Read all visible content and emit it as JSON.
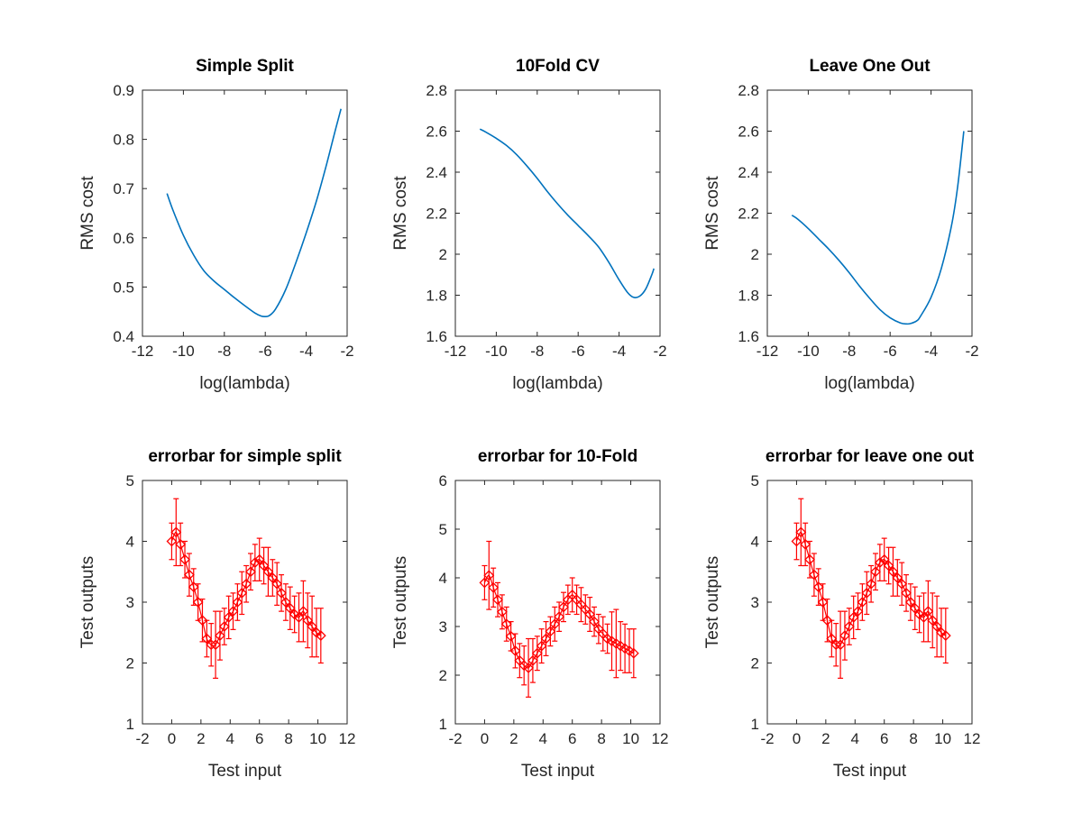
{
  "colors": {
    "curve": "#0072BD",
    "errorbar": "#FF0000",
    "axis": "#262626",
    "background": "#FFFFFF"
  },
  "chart_data": [
    {
      "type": "line",
      "title": "Simple Split",
      "xlabel": "log(lambda)",
      "ylabel": "RMS cost",
      "xlim": [
        -12,
        -2
      ],
      "ylim": [
        0.4,
        0.9
      ],
      "xticks": [
        -12,
        -10,
        -8,
        -6,
        -4,
        -2
      ],
      "yticks": [
        0.4,
        0.5,
        0.6,
        0.7,
        0.8,
        0.9
      ],
      "xtick_labels": [
        "-12",
        "-10",
        "-8",
        "-6",
        "-4",
        "-2"
      ],
      "ytick_labels": [
        "0.4",
        "0.5",
        "0.6",
        "0.7",
        "0.8",
        "0.9"
      ],
      "grid": false,
      "series": [
        {
          "x": [
            -10.8,
            -10.5,
            -10.0,
            -9.5,
            -9.0,
            -8.5,
            -8.0,
            -7.5,
            -7.0,
            -6.5,
            -6.2,
            -6.0,
            -5.8,
            -5.5,
            -5.0,
            -4.5,
            -4.0,
            -3.5,
            -3.0,
            -2.6,
            -2.3
          ],
          "y": [
            0.69,
            0.655,
            0.605,
            0.565,
            0.533,
            0.512,
            0.495,
            0.478,
            0.462,
            0.447,
            0.441,
            0.44,
            0.442,
            0.455,
            0.495,
            0.55,
            0.61,
            0.675,
            0.75,
            0.815,
            0.862
          ]
        }
      ]
    },
    {
      "type": "line",
      "title": "10Fold CV",
      "xlabel": "log(lambda)",
      "ylabel": "RMS cost",
      "xlim": [
        -12,
        -2
      ],
      "ylim": [
        1.6,
        2.8
      ],
      "xticks": [
        -12,
        -10,
        -8,
        -6,
        -4,
        -2
      ],
      "yticks": [
        1.6,
        1.8,
        2.0,
        2.2,
        2.4,
        2.6,
        2.8
      ],
      "xtick_labels": [
        "-12",
        "-10",
        "-8",
        "-6",
        "-4",
        "-2"
      ],
      "ytick_labels": [
        "1.6",
        "1.8",
        "2",
        "2.2",
        "2.4",
        "2.6",
        "2.8"
      ],
      "grid": false,
      "series": [
        {
          "x": [
            -10.8,
            -10.5,
            -10.0,
            -9.5,
            -9.0,
            -8.5,
            -8.0,
            -7.5,
            -7.0,
            -6.5,
            -6.0,
            -5.5,
            -5.0,
            -4.5,
            -4.0,
            -3.6,
            -3.3,
            -3.0,
            -2.7,
            -2.4,
            -2.3
          ],
          "y": [
            2.61,
            2.595,
            2.565,
            2.53,
            2.485,
            2.43,
            2.37,
            2.305,
            2.245,
            2.19,
            2.14,
            2.09,
            2.035,
            1.96,
            1.875,
            1.815,
            1.79,
            1.795,
            1.83,
            1.9,
            1.93
          ]
        }
      ]
    },
    {
      "type": "line",
      "title": "Leave One Out",
      "xlabel": "log(lambda)",
      "ylabel": "RMS cost",
      "xlim": [
        -12,
        -2
      ],
      "ylim": [
        1.6,
        2.8
      ],
      "xticks": [
        -12,
        -10,
        -8,
        -6,
        -4,
        -2
      ],
      "yticks": [
        1.6,
        1.8,
        2.0,
        2.2,
        2.4,
        2.6,
        2.8
      ],
      "xtick_labels": [
        "-12",
        "-10",
        "-8",
        "-6",
        "-4",
        "-2"
      ],
      "ytick_labels": [
        "1.6",
        "1.8",
        "2",
        "2.2",
        "2.4",
        "2.6",
        "2.8"
      ],
      "grid": false,
      "series": [
        {
          "x": [
            -10.8,
            -10.5,
            -10.0,
            -9.5,
            -9.0,
            -8.5,
            -8.0,
            -7.5,
            -7.0,
            -6.5,
            -6.0,
            -5.5,
            -5.2,
            -5.0,
            -4.7,
            -4.5,
            -4.0,
            -3.5,
            -3.0,
            -2.7,
            -2.4
          ],
          "y": [
            2.19,
            2.17,
            2.125,
            2.075,
            2.025,
            1.97,
            1.91,
            1.845,
            1.785,
            1.73,
            1.69,
            1.665,
            1.66,
            1.662,
            1.675,
            1.7,
            1.79,
            1.93,
            2.14,
            2.33,
            2.6
          ]
        }
      ]
    },
    {
      "type": "scatter",
      "title": "errorbar for simple split",
      "xlabel": "Test input",
      "ylabel": "Test outputs",
      "xlim": [
        -2,
        12
      ],
      "ylim": [
        1,
        5
      ],
      "xticks": [
        -2,
        0,
        2,
        4,
        6,
        8,
        10,
        12
      ],
      "yticks": [
        1,
        2,
        3,
        4,
        5
      ],
      "xtick_labels": [
        "-2",
        "0",
        "2",
        "4",
        "6",
        "8",
        "10",
        "12"
      ],
      "ytick_labels": [
        "1",
        "2",
        "3",
        "4",
        "5"
      ],
      "grid": false,
      "marker": "diamond",
      "error_bars": true,
      "series": [
        {
          "x": [
            0.0,
            0.3,
            0.6,
            0.9,
            1.2,
            1.5,
            1.8,
            2.1,
            2.4,
            2.7,
            3.0,
            3.3,
            3.6,
            3.9,
            4.2,
            4.5,
            4.8,
            5.1,
            5.4,
            5.7,
            6.0,
            6.3,
            6.6,
            6.9,
            7.2,
            7.5,
            7.8,
            8.1,
            8.4,
            8.7,
            9.0,
            9.3,
            9.6,
            9.9,
            10.2
          ],
          "y": [
            4.0,
            4.15,
            3.95,
            3.7,
            3.45,
            3.25,
            3.0,
            2.7,
            2.4,
            2.3,
            2.3,
            2.45,
            2.6,
            2.75,
            2.85,
            3.0,
            3.15,
            3.3,
            3.5,
            3.65,
            3.7,
            3.6,
            3.5,
            3.4,
            3.3,
            3.15,
            3.0,
            2.9,
            2.8,
            2.75,
            2.85,
            2.7,
            2.6,
            2.5,
            2.45
          ],
          "error": [
            0.3,
            0.55,
            0.35,
            0.3,
            0.35,
            0.3,
            0.3,
            0.35,
            0.3,
            0.35,
            0.55,
            0.4,
            0.3,
            0.35,
            0.3,
            0.3,
            0.35,
            0.3,
            0.3,
            0.3,
            0.35,
            0.3,
            0.4,
            0.3,
            0.35,
            0.3,
            0.3,
            0.35,
            0.3,
            0.4,
            0.5,
            0.45,
            0.5,
            0.4,
            0.45
          ]
        }
      ]
    },
    {
      "type": "scatter",
      "title": "errorbar for 10-Fold",
      "xlabel": "Test input",
      "ylabel": "Test outputs",
      "xlim": [
        -2,
        12
      ],
      "ylim": [
        1,
        6
      ],
      "xticks": [
        -2,
        0,
        2,
        4,
        6,
        8,
        10,
        12
      ],
      "yticks": [
        1,
        2,
        3,
        4,
        5,
        6
      ],
      "xtick_labels": [
        "-2",
        "0",
        "2",
        "4",
        "6",
        "8",
        "10",
        "12"
      ],
      "ytick_labels": [
        "1",
        "2",
        "3",
        "4",
        "5",
        "6"
      ],
      "grid": false,
      "marker": "diamond",
      "error_bars": true,
      "series": [
        {
          "x": [
            0.0,
            0.3,
            0.6,
            0.9,
            1.2,
            1.5,
            1.8,
            2.1,
            2.4,
            2.7,
            3.0,
            3.3,
            3.6,
            3.9,
            4.2,
            4.5,
            4.8,
            5.1,
            5.4,
            5.7,
            6.0,
            6.3,
            6.6,
            6.9,
            7.2,
            7.5,
            7.8,
            8.1,
            8.4,
            8.7,
            9.0,
            9.3,
            9.6,
            9.9,
            10.2
          ],
          "y": [
            3.9,
            4.05,
            3.8,
            3.55,
            3.3,
            3.05,
            2.8,
            2.5,
            2.3,
            2.2,
            2.15,
            2.3,
            2.45,
            2.6,
            2.75,
            2.9,
            3.05,
            3.2,
            3.4,
            3.55,
            3.65,
            3.55,
            3.45,
            3.35,
            3.25,
            3.1,
            2.95,
            2.85,
            2.75,
            2.7,
            2.65,
            2.6,
            2.55,
            2.5,
            2.45
          ],
          "error": [
            0.35,
            0.7,
            0.4,
            0.35,
            0.35,
            0.35,
            0.3,
            0.35,
            0.35,
            0.4,
            0.6,
            0.45,
            0.35,
            0.35,
            0.35,
            0.3,
            0.35,
            0.3,
            0.3,
            0.3,
            0.35,
            0.3,
            0.35,
            0.3,
            0.35,
            0.3,
            0.3,
            0.35,
            0.3,
            0.6,
            0.7,
            0.5,
            0.5,
            0.45,
            0.5
          ]
        }
      ]
    },
    {
      "type": "scatter",
      "title": "errorbar for leave one out",
      "xlabel": "Test input",
      "ylabel": "Test outputs",
      "xlim": [
        -2,
        12
      ],
      "ylim": [
        1,
        5
      ],
      "xticks": [
        -2,
        0,
        2,
        4,
        6,
        8,
        10,
        12
      ],
      "yticks": [
        1,
        2,
        3,
        4,
        5
      ],
      "xtick_labels": [
        "-2",
        "0",
        "2",
        "4",
        "6",
        "8",
        "10",
        "12"
      ],
      "ytick_labels": [
        "1",
        "2",
        "3",
        "4",
        "5"
      ],
      "grid": false,
      "marker": "diamond",
      "error_bars": true,
      "series": [
        {
          "x": [
            0.0,
            0.3,
            0.6,
            0.9,
            1.2,
            1.5,
            1.8,
            2.1,
            2.4,
            2.7,
            3.0,
            3.3,
            3.6,
            3.9,
            4.2,
            4.5,
            4.8,
            5.1,
            5.4,
            5.7,
            6.0,
            6.3,
            6.6,
            6.9,
            7.2,
            7.5,
            7.8,
            8.1,
            8.4,
            8.7,
            9.0,
            9.3,
            9.6,
            9.9,
            10.2
          ],
          "y": [
            4.0,
            4.15,
            3.95,
            3.7,
            3.45,
            3.25,
            3.0,
            2.7,
            2.4,
            2.3,
            2.3,
            2.45,
            2.6,
            2.75,
            2.85,
            3.0,
            3.15,
            3.3,
            3.5,
            3.65,
            3.7,
            3.6,
            3.5,
            3.4,
            3.3,
            3.15,
            3.0,
            2.9,
            2.8,
            2.75,
            2.85,
            2.7,
            2.6,
            2.5,
            2.45
          ],
          "error": [
            0.3,
            0.55,
            0.35,
            0.3,
            0.35,
            0.3,
            0.3,
            0.35,
            0.3,
            0.35,
            0.55,
            0.4,
            0.3,
            0.35,
            0.3,
            0.3,
            0.35,
            0.3,
            0.3,
            0.3,
            0.35,
            0.3,
            0.4,
            0.3,
            0.35,
            0.3,
            0.3,
            0.35,
            0.3,
            0.4,
            0.5,
            0.45,
            0.5,
            0.4,
            0.45
          ]
        }
      ]
    }
  ]
}
